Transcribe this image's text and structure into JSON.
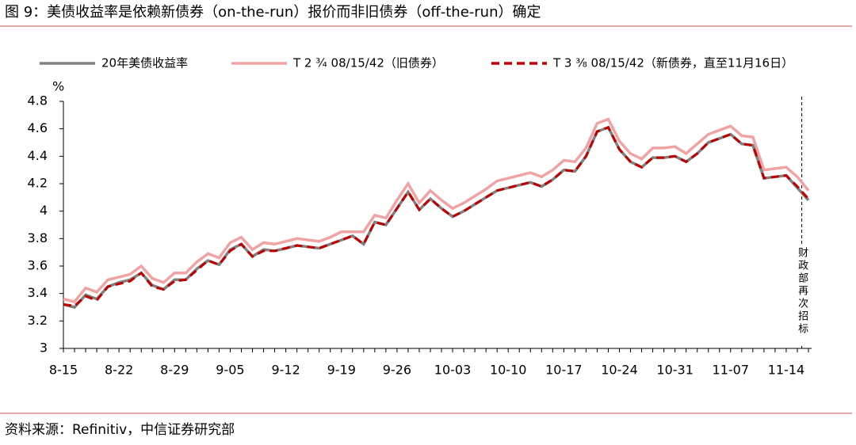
{
  "chart_data": {
    "type": "line",
    "title": "图 9：美债收益率是依赖新债券（on-the-run）报价而非旧债券（off-the-run）确定",
    "y_label": "%",
    "source": "资料来源：Refinitiv，中信证券研究部",
    "annotation": "财政部再次招标",
    "categories": [
      "8-15",
      null,
      null,
      null,
      null,
      "8-22",
      null,
      null,
      null,
      null,
      "8-29",
      null,
      null,
      null,
      null,
      "9-05",
      null,
      null,
      null,
      null,
      "9-12",
      null,
      null,
      null,
      null,
      "9-19",
      null,
      null,
      null,
      null,
      "9-26",
      null,
      null,
      null,
      null,
      "10-03",
      null,
      null,
      null,
      null,
      "10-10",
      null,
      null,
      null,
      null,
      "10-17",
      null,
      null,
      null,
      null,
      "10-24",
      null,
      null,
      null,
      null,
      "10-31",
      null,
      null,
      null,
      null,
      "11-07",
      null,
      null,
      null,
      null,
      "11-14",
      null,
      null
    ],
    "series": [
      {
        "name": "20年美债收益率",
        "color": "#808080",
        "dash": false,
        "values": [
          3.32,
          3.3,
          3.39,
          3.36,
          3.45,
          3.48,
          3.5,
          3.55,
          3.46,
          3.43,
          3.5,
          3.5,
          3.58,
          3.64,
          3.61,
          3.72,
          3.76,
          3.67,
          3.72,
          3.71,
          3.73,
          3.75,
          3.74,
          3.73,
          3.76,
          3.79,
          3.82,
          3.76,
          3.92,
          3.9,
          4.02,
          4.14,
          4.01,
          4.09,
          4.02,
          3.96,
          4.0,
          4.05,
          4.1,
          4.15,
          4.17,
          4.19,
          4.21,
          4.18,
          4.23,
          4.3,
          4.29,
          4.4,
          4.58,
          4.61,
          4.45,
          4.36,
          4.32,
          4.39,
          4.39,
          4.4,
          4.36,
          4.42,
          4.5,
          4.53,
          4.56,
          4.49,
          4.48,
          4.24,
          4.25,
          4.26,
          4.17,
          4.08
        ]
      },
      {
        "name": "T 2 ¾ 08/15/42（旧债券）",
        "color": "#f0a3a3",
        "dash": false,
        "values": [
          3.36,
          3.34,
          3.44,
          3.41,
          3.5,
          3.52,
          3.54,
          3.6,
          3.51,
          3.48,
          3.55,
          3.55,
          3.63,
          3.69,
          3.66,
          3.77,
          3.81,
          3.72,
          3.77,
          3.76,
          3.78,
          3.8,
          3.79,
          3.78,
          3.81,
          3.85,
          3.85,
          3.85,
          3.97,
          3.95,
          4.08,
          4.2,
          4.06,
          4.15,
          4.08,
          4.02,
          4.06,
          4.11,
          4.16,
          4.22,
          4.24,
          4.26,
          4.28,
          4.25,
          4.3,
          4.37,
          4.36,
          4.46,
          4.64,
          4.67,
          4.51,
          4.42,
          4.38,
          4.46,
          4.46,
          4.47,
          4.42,
          4.49,
          4.56,
          4.59,
          4.62,
          4.55,
          4.54,
          4.3,
          4.31,
          4.32,
          4.25,
          4.15
        ]
      },
      {
        "name": "T 3 ⅜ 08/15/42（新债券，直至11月16日）",
        "color": "#c00000",
        "dash": true,
        "values": [
          3.32,
          3.31,
          3.38,
          3.35,
          3.45,
          3.47,
          3.49,
          3.55,
          3.45,
          3.43,
          3.49,
          3.5,
          3.57,
          3.64,
          3.61,
          3.71,
          3.76,
          3.67,
          3.71,
          3.71,
          3.73,
          3.75,
          3.74,
          3.73,
          3.76,
          3.79,
          3.82,
          3.76,
          3.92,
          3.9,
          4.02,
          4.14,
          4.01,
          4.09,
          4.02,
          3.96,
          4.0,
          4.05,
          4.1,
          4.15,
          4.17,
          4.19,
          4.21,
          4.18,
          4.23,
          4.3,
          4.29,
          4.4,
          4.58,
          4.61,
          4.45,
          4.36,
          4.32,
          4.39,
          4.39,
          4.4,
          4.36,
          4.42,
          4.5,
          4.53,
          4.56,
          4.49,
          4.48,
          4.24,
          4.25,
          4.26,
          4.18,
          4.09
        ]
      }
    ],
    "ylim": [
      3,
      4.8
    ],
    "yticks": [
      3,
      3.2,
      3.4,
      3.6,
      3.8,
      4,
      4.2,
      4.4,
      4.6,
      4.8
    ],
    "legend": "top"
  }
}
